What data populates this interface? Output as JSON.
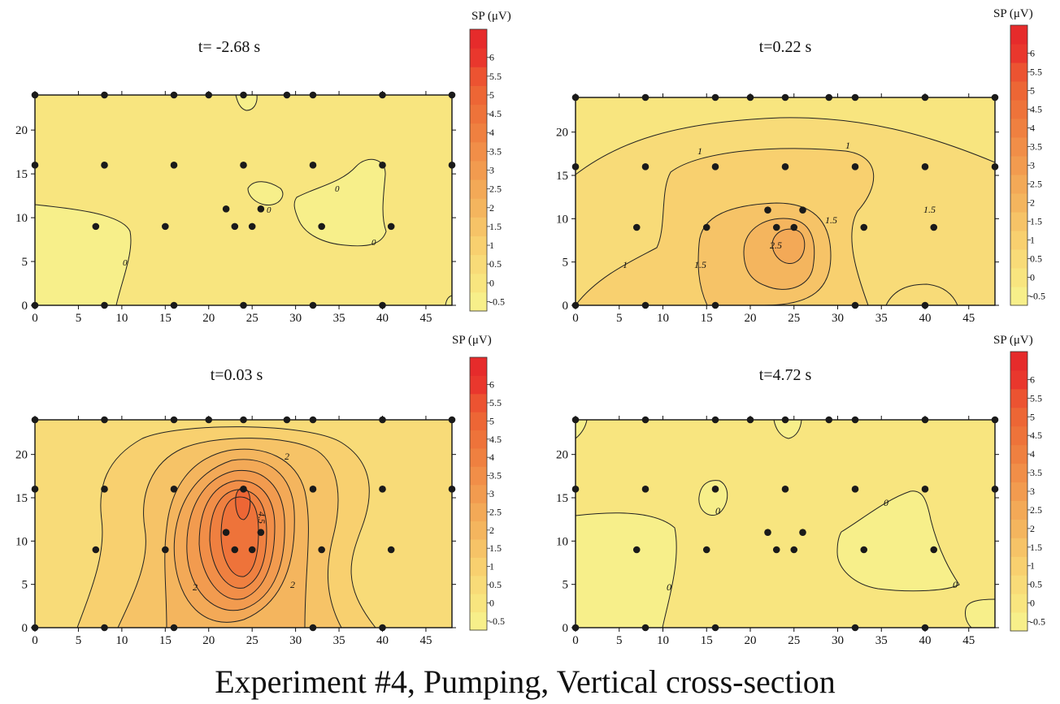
{
  "figure_title": "Experiment #4, Pumping, Vertical cross-section",
  "colorbar": {
    "title": "SP (μV)",
    "levels": [
      -0.5,
      0,
      0.5,
      1,
      1.5,
      2,
      2.5,
      3,
      3.5,
      4,
      4.5,
      5,
      5.5,
      6
    ],
    "tick_labels": [
      "-0.5",
      "0",
      "0.5",
      "1",
      "1.5",
      "2",
      "2.5",
      "3",
      "3.5",
      "4",
      "4.5",
      "5",
      "5.5",
      "6"
    ],
    "colors": [
      "#f7ef8a",
      "#f8e57f",
      "#f8db78",
      "#f8d06f",
      "#f6c367",
      "#f4b55e",
      "#f3a957",
      "#f29b4f",
      "#f18e48",
      "#ef8040",
      "#ee733a",
      "#ed6635",
      "#ec5331",
      "#e9372d",
      "#e62b2b"
    ]
  },
  "axes": {
    "xticks": [
      0,
      5,
      10,
      15,
      20,
      25,
      30,
      35,
      40,
      45
    ],
    "yticks": [
      0,
      5,
      10,
      15,
      20
    ],
    "xlim": [
      0,
      48
    ],
    "ylim": [
      0,
      24
    ]
  },
  "chart_data": [
    {
      "type": "contour",
      "title": "t= -2.68 s",
      "background_level": 0,
      "contour_labels": [
        "0",
        "0",
        "0",
        "0"
      ],
      "electrodes": [
        [
          0,
          24
        ],
        [
          8,
          24
        ],
        [
          16,
          24
        ],
        [
          20,
          24
        ],
        [
          24,
          24
        ],
        [
          29,
          24
        ],
        [
          32,
          24
        ],
        [
          40,
          24
        ],
        [
          48,
          24
        ],
        [
          0,
          16
        ],
        [
          8,
          16
        ],
        [
          16,
          16
        ],
        [
          24,
          16
        ],
        [
          32,
          16
        ],
        [
          40,
          16
        ],
        [
          48,
          16
        ],
        [
          7,
          9
        ],
        [
          15,
          9
        ],
        [
          22,
          11
        ],
        [
          23,
          9
        ],
        [
          25,
          9
        ],
        [
          26,
          11
        ],
        [
          33,
          9
        ],
        [
          41,
          9
        ],
        [
          0,
          0
        ],
        [
          8,
          0
        ],
        [
          16,
          0
        ],
        [
          24,
          0
        ],
        [
          32,
          0
        ],
        [
          40,
          0
        ]
      ]
    },
    {
      "type": "contour",
      "title": "t=0.22 s",
      "background_level": 0.5,
      "contour_labels": [
        "1",
        "1",
        "1",
        "1.5",
        "1.5",
        "1.5",
        "2.5"
      ],
      "electrodes": [
        [
          0,
          24
        ],
        [
          8,
          24
        ],
        [
          16,
          24
        ],
        [
          20,
          24
        ],
        [
          24,
          24
        ],
        [
          29,
          24
        ],
        [
          32,
          24
        ],
        [
          40,
          24
        ],
        [
          48,
          24
        ],
        [
          0,
          16
        ],
        [
          8,
          16
        ],
        [
          16,
          16
        ],
        [
          24,
          16
        ],
        [
          32,
          16
        ],
        [
          40,
          16
        ],
        [
          48,
          16
        ],
        [
          7,
          9
        ],
        [
          15,
          9
        ],
        [
          22,
          11
        ],
        [
          23,
          9
        ],
        [
          25,
          9
        ],
        [
          26,
          11
        ],
        [
          33,
          9
        ],
        [
          41,
          9
        ],
        [
          0,
          0
        ],
        [
          8,
          0
        ],
        [
          16,
          0
        ],
        [
          32,
          0
        ],
        [
          40,
          0
        ]
      ]
    },
    {
      "type": "contour",
      "title": "t=0.03 s",
      "background_level": 0.5,
      "contour_labels": [
        "2",
        "2",
        "2",
        "4.5"
      ],
      "electrodes": [
        [
          0,
          24
        ],
        [
          8,
          24
        ],
        [
          16,
          24
        ],
        [
          20,
          24
        ],
        [
          24,
          24
        ],
        [
          29,
          24
        ],
        [
          32,
          24
        ],
        [
          40,
          24
        ],
        [
          48,
          24
        ],
        [
          0,
          16
        ],
        [
          8,
          16
        ],
        [
          16,
          16
        ],
        [
          24,
          16
        ],
        [
          32,
          16
        ],
        [
          40,
          16
        ],
        [
          48,
          16
        ],
        [
          7,
          9
        ],
        [
          15,
          9
        ],
        [
          22,
          11
        ],
        [
          23,
          9
        ],
        [
          25,
          9
        ],
        [
          26,
          11
        ],
        [
          33,
          9
        ],
        [
          41,
          9
        ],
        [
          0,
          0
        ],
        [
          8,
          0
        ],
        [
          16,
          0
        ],
        [
          32,
          0
        ],
        [
          40,
          0
        ]
      ]
    },
    {
      "type": "contour",
      "title": "t=4.72 s",
      "background_level": 0,
      "contour_labels": [
        "0",
        "0",
        "0",
        "0"
      ],
      "electrodes": [
        [
          0,
          24
        ],
        [
          8,
          24
        ],
        [
          16,
          24
        ],
        [
          20,
          24
        ],
        [
          24,
          24
        ],
        [
          29,
          24
        ],
        [
          32,
          24
        ],
        [
          40,
          24
        ],
        [
          48,
          24
        ],
        [
          0,
          16
        ],
        [
          8,
          16
        ],
        [
          16,
          16
        ],
        [
          24,
          16
        ],
        [
          32,
          16
        ],
        [
          40,
          16
        ],
        [
          48,
          16
        ],
        [
          7,
          9
        ],
        [
          15,
          9
        ],
        [
          22,
          11
        ],
        [
          23,
          9
        ],
        [
          25,
          9
        ],
        [
          26,
          11
        ],
        [
          33,
          9
        ],
        [
          41,
          9
        ],
        [
          0,
          0
        ],
        [
          8,
          0
        ],
        [
          16,
          0
        ],
        [
          32,
          0
        ],
        [
          40,
          0
        ]
      ]
    }
  ]
}
